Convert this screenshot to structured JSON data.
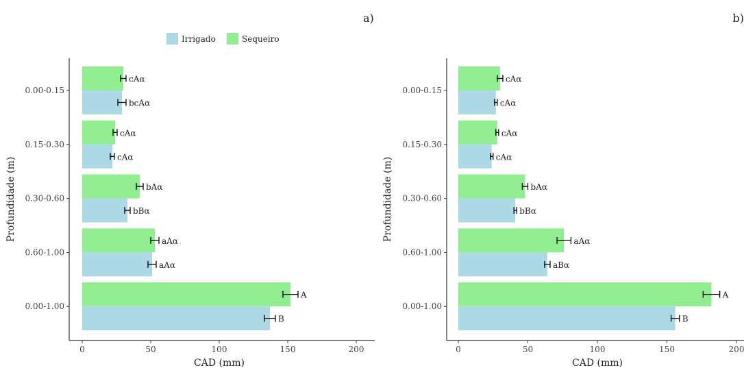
{
  "legend": [
    {
      "name": "Irrigado",
      "color": "#add8e6"
    },
    {
      "name": "Sequeiro",
      "color": "#90ee90"
    }
  ],
  "chart_data": [
    {
      "type": "bar",
      "panel": "a)",
      "orientation": "horizontal",
      "categories": [
        "0.00-0.15",
        "0.15-0.30",
        "0.30-0.60",
        "0.60-1.00",
        "0.00-1.00"
      ],
      "xlabel": "CAD (mm)",
      "ylabel": "Profundidade (m)",
      "xlim": [
        0,
        200
      ],
      "xticks": [
        0,
        50,
        100,
        150,
        200
      ],
      "grid": false,
      "legend_position": "top",
      "series": [
        {
          "name": "Irrigado",
          "color": "#add8e6",
          "values": [
            29,
            22,
            33,
            51,
            137
          ],
          "errors": [
            3,
            1.5,
            2,
            3,
            4
          ],
          "labels": [
            "bcAα",
            "cAα",
            "bBα",
            "aAα",
            "B"
          ]
        },
        {
          "name": "Sequeiro",
          "color": "#90ee90",
          "values": [
            30,
            24,
            42,
            53,
            152
          ],
          "errors": [
            2,
            1.5,
            2.5,
            3,
            5.5
          ],
          "labels": [
            "cAα",
            "cAα",
            "bAα",
            "aAα",
            "A"
          ]
        }
      ]
    },
    {
      "type": "bar",
      "panel": "b)",
      "orientation": "horizontal",
      "categories": [
        "0.00-0.15",
        "0.15-0.30",
        "0.30-0.60",
        "0.60-1.00",
        "0.00-1.00"
      ],
      "xlabel": "CAD (mm)",
      "ylabel": "Profundidade (m)",
      "xlim": [
        0,
        200
      ],
      "xticks": [
        0,
        50,
        100,
        150,
        200
      ],
      "grid": false,
      "series": [
        {
          "name": "Irrigado",
          "color": "#add8e6",
          "values": [
            27,
            24,
            41,
            64,
            156
          ],
          "errors": [
            1,
            1,
            1,
            2,
            3
          ],
          "labels": [
            "cAα",
            "cAα",
            "bBα",
            "aBα",
            "B"
          ]
        },
        {
          "name": "Sequeiro",
          "color": "#90ee90",
          "values": [
            30,
            28,
            48,
            76,
            182
          ],
          "errors": [
            2,
            1,
            2,
            5,
            6
          ],
          "labels": [
            "cAα",
            "cAα",
            "bAα",
            "aAα",
            "A"
          ]
        }
      ]
    }
  ]
}
